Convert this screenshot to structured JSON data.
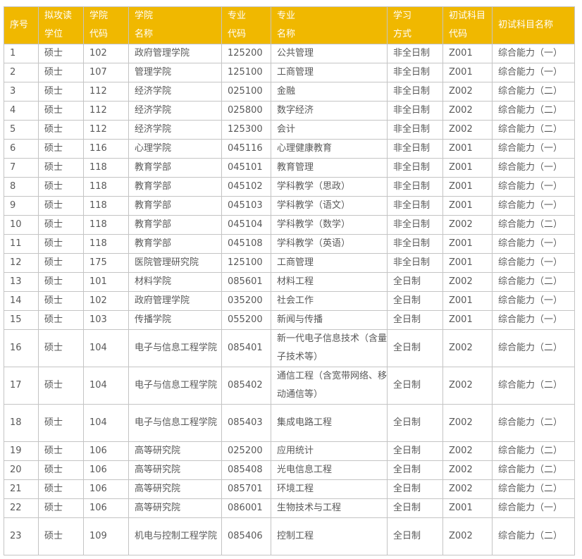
{
  "header_color": "#f0b800",
  "columns": [
    "序号",
    "拟攻读学位",
    "学院代码",
    "学院名称",
    "专业代码",
    "专业名称",
    "学习方式",
    "初试科目代码",
    "初试科目名称"
  ],
  "header_lines": [
    [
      "序号"
    ],
    [
      "拟攻读",
      "学位"
    ],
    [
      "学院",
      "代码"
    ],
    [
      "学院",
      "名称"
    ],
    [
      "专业",
      "代码"
    ],
    [
      "专业",
      "名称"
    ],
    [
      "学习",
      "方式"
    ],
    [
      "初试科目",
      "代码"
    ],
    [
      "初试科目名称"
    ]
  ],
  "rows": [
    [
      "1",
      "硕士",
      "102",
      "政府管理学院",
      "125200",
      "公共管理",
      "非全日制",
      "Z001",
      "综合能力（一）"
    ],
    [
      "2",
      "硕士",
      "107",
      "管理学院",
      "125100",
      "工商管理",
      "非全日制",
      "Z001",
      "综合能力（一）"
    ],
    [
      "3",
      "硕士",
      "112",
      "经济学院",
      "025100",
      "金融",
      "非全日制",
      "Z002",
      "综合能力（二）"
    ],
    [
      "4",
      "硕士",
      "112",
      "经济学院",
      "025800",
      "数字经济",
      "非全日制",
      "Z002",
      "综合能力（二）"
    ],
    [
      "5",
      "硕士",
      "112",
      "经济学院",
      "125300",
      "会计",
      "非全日制",
      "Z002",
      "综合能力（二）"
    ],
    [
      "6",
      "硕士",
      "116",
      "心理学院",
      "045116",
      "心理健康教育",
      "非全日制",
      "Z001",
      "综合能力（一）"
    ],
    [
      "7",
      "硕士",
      "118",
      "教育学部",
      "045101",
      "教育管理",
      "非全日制",
      "Z001",
      "综合能力（一）"
    ],
    [
      "8",
      "硕士",
      "118",
      "教育学部",
      "045102",
      "学科教学（思政）",
      "非全日制",
      "Z001",
      "综合能力（一）"
    ],
    [
      "9",
      "硕士",
      "118",
      "教育学部",
      "045103",
      "学科教学（语文）",
      "非全日制",
      "Z001",
      "综合能力（一）"
    ],
    [
      "10",
      "硕士",
      "118",
      "教育学部",
      "045104",
      "学科教学（数学）",
      "非全日制",
      "Z002",
      "综合能力（二）"
    ],
    [
      "11",
      "硕士",
      "118",
      "教育学部",
      "045108",
      "学科教学（英语）",
      "非全日制",
      "Z001",
      "综合能力（一）"
    ],
    [
      "12",
      "硕士",
      "175",
      "医院管理研究院",
      "125100",
      "工商管理",
      "非全日制",
      "Z001",
      "综合能力（一）"
    ],
    [
      "13",
      "硕士",
      "101",
      "材料学院",
      "085601",
      "材料工程",
      "全日制",
      "Z002",
      "综合能力（二）"
    ],
    [
      "14",
      "硕士",
      "102",
      "政府管理学院",
      "035200",
      "社会工作",
      "全日制",
      "Z001",
      "综合能力（一）"
    ],
    [
      "15",
      "硕士",
      "103",
      "传播学院",
      "055200",
      "新闻与传播",
      "全日制",
      "Z001",
      "综合能力（一）"
    ],
    [
      "16",
      "硕士",
      "104",
      "电子与信息工程学院",
      "085401",
      "新一代电子信息技术（含量子技术等）",
      "全日制",
      "Z002",
      "综合能力（二）"
    ],
    [
      "17",
      "硕士",
      "104",
      "电子与信息工程学院",
      "085402",
      "通信工程（含宽带网络、移动通信等）",
      "全日制",
      "Z002",
      "综合能力（二）"
    ],
    [
      "18",
      "硕士",
      "104",
      "电子与信息工程学院",
      "085403",
      "集成电路工程",
      "全日制",
      "Z002",
      "综合能力（二）"
    ],
    [
      "19",
      "硕士",
      "106",
      "高等研究院",
      "025200",
      "应用统计",
      "全日制",
      "Z002",
      "综合能力（二）"
    ],
    [
      "20",
      "硕士",
      "106",
      "高等研究院",
      "085408",
      "光电信息工程",
      "全日制",
      "Z002",
      "综合能力（二）"
    ],
    [
      "21",
      "硕士",
      "106",
      "高等研究院",
      "085701",
      "环境工程",
      "全日制",
      "Z002",
      "综合能力（二）"
    ],
    [
      "22",
      "硕士",
      "106",
      "高等研究院",
      "086001",
      "生物技术与工程",
      "全日制",
      "Z001",
      "综合能力（一）"
    ],
    [
      "23",
      "硕士",
      "109",
      "机电与控制工程学院",
      "085406",
      "控制工程",
      "全日制",
      "Z002",
      "综合能力（二）"
    ]
  ]
}
